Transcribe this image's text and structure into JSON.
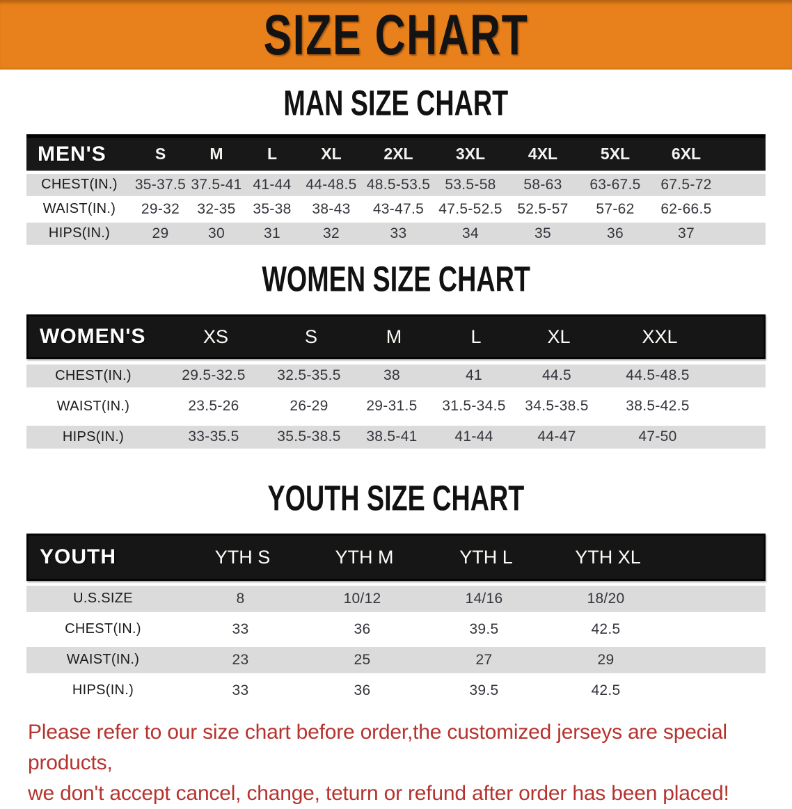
{
  "banner": {
    "title": "SIZE CHART",
    "background_color": "#E8811B",
    "text_color": "#131313"
  },
  "sections": [
    {
      "heading": "MAN SIZE CHART",
      "header_label": "MEN'S",
      "columns": [
        "S",
        "M",
        "L",
        "XL",
        "2XL",
        "3XL",
        "4XL",
        "5XL",
        "6XL"
      ],
      "rows": [
        {
          "label": "CHEST(IN.)",
          "values": [
            "35-37.5",
            "37.5-41",
            "41-44",
            "44-48.5",
            "48.5-53.5",
            "53.5-58",
            "58-63",
            "63-67.5",
            "67.5-72"
          ]
        },
        {
          "label": "WAIST(IN.)",
          "values": [
            "29-32",
            "32-35",
            "35-38",
            "38-43",
            "43-47.5",
            "47.5-52.5",
            "52.5-57",
            "57-62",
            "62-66.5"
          ]
        },
        {
          "label": "HIPS(IN.)",
          "values": [
            "29",
            "30",
            "31",
            "32",
            "33",
            "34",
            "35",
            "36",
            "37"
          ]
        }
      ]
    },
    {
      "heading": "WOMEN SIZE CHART",
      "header_label": "WOMEN'S",
      "columns": [
        "XS",
        "S",
        "M",
        "L",
        "XL",
        "XXL"
      ],
      "rows": [
        {
          "label": "CHEST(IN.)",
          "values": [
            "29.5-32.5",
            "32.5-35.5",
            "38",
            "41",
            "44.5",
            "44.5-48.5"
          ]
        },
        {
          "label": "WAIST(IN.)",
          "values": [
            "23.5-26",
            "26-29",
            "29-31.5",
            "31.5-34.5",
            "34.5-38.5",
            "38.5-42.5"
          ]
        },
        {
          "label": "HIPS(IN.)",
          "values": [
            "33-35.5",
            "35.5-38.5",
            "38.5-41",
            "41-44",
            "44-47",
            "47-50"
          ]
        }
      ]
    },
    {
      "heading": "YOUTH SIZE CHART",
      "header_label": "YOUTH",
      "columns": [
        "YTH S",
        "YTH M",
        "YTH L",
        "YTH XL"
      ],
      "rows": [
        {
          "label": "U.S.SIZE",
          "values": [
            "8",
            "10/12",
            "14/16",
            "18/20"
          ]
        },
        {
          "label": "CHEST(IN.)",
          "values": [
            "33",
            "36",
            "39.5",
            "42.5"
          ]
        },
        {
          "label": "WAIST(IN.)",
          "values": [
            "23",
            "25",
            "27",
            "29"
          ]
        },
        {
          "label": "HIPS(IN.)",
          "values": [
            "33",
            "36",
            "39.5",
            "42.5"
          ]
        }
      ]
    }
  ],
  "footer_note": {
    "line1": "Please refer to our size chart before order,the customized jerseys are special products,",
    "line2": "we don't accept cancel, change, teturn or refund after order has been placed!",
    "color": "#B5332F"
  }
}
